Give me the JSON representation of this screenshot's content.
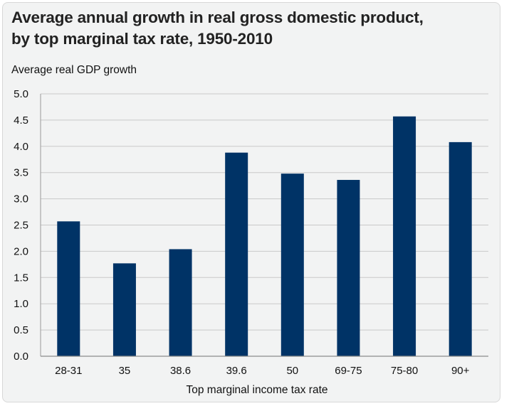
{
  "chart_data": {
    "type": "bar",
    "title": "Average annual growth in real gross domestic product, by top marginal tax rate, 1950-2010",
    "title_lines": [
      "Average annual growth in real gross domestic product,",
      "by top marginal tax rate, 1950-2010"
    ],
    "ylabel": "Average real GDP growth",
    "xlabel": "Top marginal income tax rate",
    "categories": [
      "28-31",
      "35",
      "38.6",
      "39.6",
      "50",
      "69-75",
      "75-80",
      "90+"
    ],
    "values": [
      2.57,
      1.77,
      2.04,
      3.88,
      3.48,
      3.36,
      4.57,
      4.08
    ],
    "ylim": [
      0,
      5
    ],
    "yticks": [
      "0.0",
      "0.5",
      "1.0",
      "1.5",
      "2.0",
      "2.5",
      "3.0",
      "3.5",
      "4.0",
      "4.5",
      "5.0"
    ],
    "grid": true,
    "legend": "none",
    "colors": {
      "bar": "#003366",
      "grid": "#c9c9c9",
      "background": "#f2f3f3"
    }
  }
}
